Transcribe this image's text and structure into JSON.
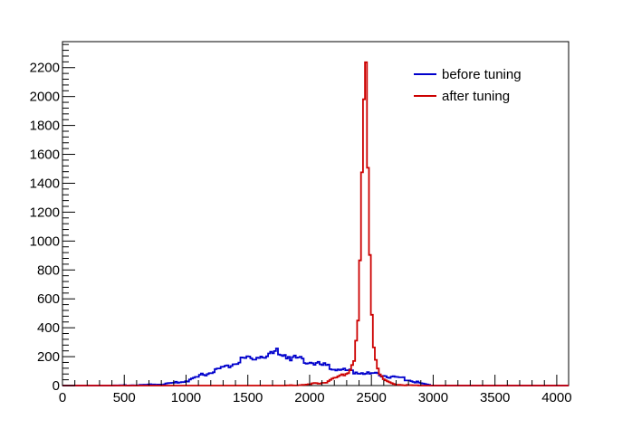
{
  "chart_data": {
    "type": "line",
    "title": "",
    "xlabel": "",
    "ylabel": "",
    "xlim": [
      0,
      4096
    ],
    "ylim": [
      0,
      2380
    ],
    "x_ticks": [
      0,
      500,
      1000,
      1500,
      2000,
      2500,
      3000,
      3500,
      4000
    ],
    "y_ticks": [
      0,
      200,
      400,
      600,
      800,
      1000,
      1200,
      1400,
      1600,
      1800,
      2000,
      2200
    ],
    "grid": false,
    "legend_position": "top-right",
    "series": [
      {
        "name": "before tuning",
        "color": "#0000cc",
        "x": [
          0,
          400,
          600,
          700,
          800,
          900,
          1000,
          1050,
          1100,
          1150,
          1200,
          1250,
          1300,
          1350,
          1400,
          1450,
          1500,
          1550,
          1600,
          1650,
          1700,
          1750,
          1800,
          1850,
          1900,
          1950,
          2000,
          2050,
          2100,
          2150,
          2200,
          2250,
          2300,
          2350,
          2400,
          2450,
          2500,
          2550,
          2600,
          2650,
          2700,
          2750,
          2800,
          2850,
          2900,
          2950,
          3000,
          4096
        ],
        "y": [
          0,
          0,
          3,
          6,
          10,
          18,
          30,
          45,
          60,
          80,
          95,
          110,
          125,
          140,
          160,
          175,
          185,
          190,
          205,
          200,
          215,
          240,
          215,
          190,
          190,
          170,
          165,
          150,
          140,
          135,
          120,
          115,
          100,
          95,
          90,
          85,
          80,
          75,
          70,
          65,
          60,
          50,
          40,
          30,
          15,
          5,
          0,
          0
        ]
      },
      {
        "name": "after tuning",
        "color": "#cc0000",
        "x": [
          0,
          1800,
          1900,
          2000,
          2100,
          2150,
          2200,
          2250,
          2300,
          2330,
          2360,
          2390,
          2410,
          2430,
          2445,
          2455,
          2465,
          2475,
          2490,
          2505,
          2520,
          2540,
          2560,
          2580,
          2600,
          2640,
          2680,
          2720,
          2800,
          2900,
          4096
        ],
        "y": [
          0,
          0,
          3,
          8,
          20,
          30,
          45,
          60,
          85,
          120,
          180,
          380,
          900,
          1700,
          2060,
          2260,
          1880,
          1380,
          850,
          480,
          290,
          160,
          95,
          60,
          40,
          22,
          12,
          6,
          2,
          0,
          0
        ]
      }
    ]
  }
}
